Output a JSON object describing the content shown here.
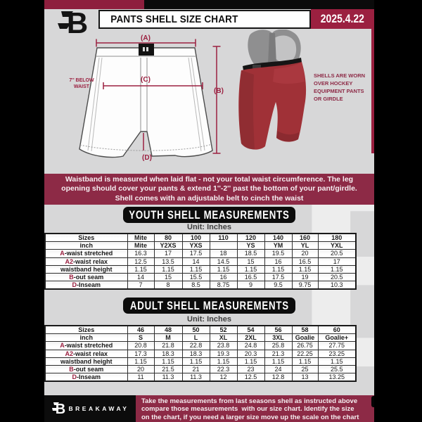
{
  "header": {
    "title": "PANTS SHELL SIZE CHART",
    "date": "2025.4.22",
    "brand_letter": "B"
  },
  "diagram": {
    "label_a": "(A)",
    "label_b": "(B)",
    "label_c": "(C)",
    "label_d": "(D)",
    "below_waist": [
      "7'' BELOW",
      "WAIST"
    ],
    "shell_note": [
      "SHELLS ARE WORN",
      "OVER HOCKEY",
      "EQUIPMENT PANTS",
      "OR GIRDLE"
    ]
  },
  "info_banner": {
    "lines": [
      "Waistband is measured when laid flat - not your total waist circumference. The leg",
      "opening should cover your pants & extend 1''-2'' past the bottom of your pant/girdle.",
      "Shell comes with an adjustable belt to cinch the waist"
    ]
  },
  "youth": {
    "title": "YOUTH SHELL MEASUREMENTS",
    "unit": "Unit: Inches",
    "rows": [
      {
        "prefix": "",
        "label": "Sizes",
        "values": [
          "Mite",
          "80",
          "100",
          "110",
          "120",
          "140",
          "160",
          "180"
        ]
      },
      {
        "prefix": "",
        "label": "inch",
        "values": [
          "Mite",
          "Y2XS",
          "YXS",
          "",
          "YS",
          "YM",
          "YL",
          "YXL"
        ]
      },
      {
        "prefix": "A",
        "label": "-waist stretched",
        "values": [
          "16.3",
          "17",
          "17.5",
          "18",
          "18.5",
          "19.5",
          "20",
          "20.5"
        ]
      },
      {
        "prefix": "A2",
        "label": "-waist relax",
        "values": [
          "12.5",
          "13.5",
          "14",
          "14.5",
          "15",
          "16",
          "16.5",
          "17"
        ]
      },
      {
        "prefix": "",
        "label": "waistband height",
        "values": [
          "1.15",
          "1.15",
          "1.15",
          "1.15",
          "1.15",
          "1.15",
          "1.15",
          "1.15"
        ]
      },
      {
        "prefix": "B",
        "label": "-out seam",
        "values": [
          "14",
          "15",
          "15.5",
          "16",
          "16.5",
          "17.5",
          "19",
          "20.5"
        ]
      },
      {
        "prefix": "D",
        "label": "-Inseam",
        "values": [
          "7",
          "8",
          "8.5",
          "8.75",
          "9",
          "9.5",
          "9.75",
          "10.3"
        ]
      }
    ]
  },
  "adult": {
    "title": "ADULT SHELL MEASUREMENTS",
    "unit": "Unit: Inches",
    "rows": [
      {
        "prefix": "",
        "label": "Sizes",
        "values": [
          "46",
          "48",
          "50",
          "52",
          "54",
          "56",
          "58",
          "60"
        ]
      },
      {
        "prefix": "",
        "label": "inch",
        "values": [
          "S",
          "M",
          "L",
          "XL",
          "2XL",
          "3XL",
          "Goalie",
          "Goalie+"
        ]
      },
      {
        "prefix": "A",
        "label": "-waist stretched",
        "values": [
          "20.8",
          "21.8",
          "22.8",
          "23.8",
          "24.8",
          "25.8",
          "26.75",
          "27.75"
        ]
      },
      {
        "prefix": "A2",
        "label": "-waist relax",
        "values": [
          "17.3",
          "18.3",
          "18.3",
          "19.3",
          "20.3",
          "21.3",
          "22.25",
          "23.25"
        ]
      },
      {
        "prefix": "",
        "label": "waistband height",
        "values": [
          "1.15",
          "1.15",
          "1.15",
          "1.15",
          "1.15",
          "1.15",
          "1.15",
          "1.15"
        ]
      },
      {
        "prefix": "B",
        "label": "-out seam",
        "values": [
          "20",
          "21.5",
          "21",
          "22.3",
          "23",
          "24",
          "25",
          "25.5"
        ]
      },
      {
        "prefix": "D",
        "label": "-Inseam",
        "values": [
          "11",
          "11.3",
          "11.3",
          "12",
          "12.5",
          "12.8",
          "13",
          "13.25"
        ]
      }
    ]
  },
  "footer": {
    "brand": "BREAKAWAY",
    "brand_letter": "B",
    "lines": [
      "Take the measurements from last seasons shell as instructed above",
      "compare those measurements  with our size chart. Identify the size",
      "on the chart, if you need a larger size move up the scale on the chart"
    ]
  },
  "colors": {
    "maroon": "#8d2a46",
    "maroon_bright": "#9b2040",
    "background_gray": "#d7d7d8",
    "black": "#0c0c0c",
    "shell_red": "#a03137"
  }
}
